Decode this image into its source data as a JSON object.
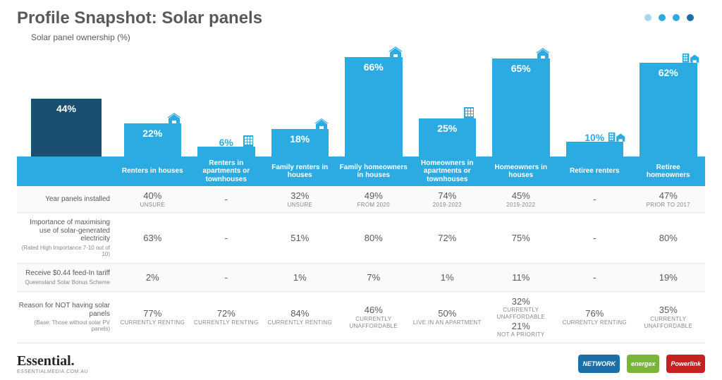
{
  "title": "Profile Snapshot: Solar panels",
  "subtitle": "Solar panel ownership (%)",
  "colors": {
    "bar_primary": "#2caae2",
    "bar_dark": "#1b4f72",
    "header_bg": "#2caae2",
    "header_text": "#ffffff",
    "text": "#595959",
    "subtext": "#888888",
    "row_alt": "#fafafa",
    "border": "#e6e6e6",
    "dot_light": "#a8d8ef",
    "dot_mid": "#2caae2",
    "dot_dark": "#1b6fa8"
  },
  "dots": [
    "#a8d8ef",
    "#2caae2",
    "#2caae2",
    "#1b6fa8"
  ],
  "chart": {
    "type": "bar",
    "max": 70,
    "first": {
      "value": 44,
      "label": "44%",
      "color": "#1b4f72",
      "height_pct": 50
    },
    "bars": [
      {
        "value": 22,
        "label": "22%",
        "color": "#2caae2",
        "icon": "house"
      },
      {
        "value": 6,
        "label": "6%",
        "color": "#2caae2",
        "icon": "apt"
      },
      {
        "value": 18,
        "label": "18%",
        "color": "#2caae2",
        "icon": "house"
      },
      {
        "value": 66,
        "label": "66%",
        "color": "#2caae2",
        "icon": "house"
      },
      {
        "value": 25,
        "label": "25%",
        "color": "#2caae2",
        "icon": "apt"
      },
      {
        "value": 65,
        "label": "65%",
        "color": "#2caae2",
        "icon": "house"
      },
      {
        "value": 10,
        "label": "10%",
        "color": "#2caae2",
        "icon": "both"
      },
      {
        "value": 62,
        "label": "62%",
        "color": "#2caae2",
        "icon": "both"
      }
    ]
  },
  "columns": [
    "Renters in houses",
    "Renters in apartments or townhouses",
    "Family renters in houses",
    "Family homeowners in houses",
    "Homeowners in apartments or townhouses",
    "Homeowners in houses",
    "Retiree renters",
    "Retiree homeowners"
  ],
  "rows": [
    {
      "label": "Year panels installed",
      "sub": "",
      "cells": [
        {
          "pct": "40%",
          "detail": "UNSURE"
        },
        {
          "pct": "-",
          "detail": ""
        },
        {
          "pct": "32%",
          "detail": "UNSURE"
        },
        {
          "pct": "49%",
          "detail": "FROM 2020"
        },
        {
          "pct": "74%",
          "detail": "2019-2022"
        },
        {
          "pct": "45%",
          "detail": "2019-2022"
        },
        {
          "pct": "-",
          "detail": ""
        },
        {
          "pct": "47%",
          "detail": "PRIOR TO 2017"
        }
      ]
    },
    {
      "label": "Importance of maximising use of solar-generated electricity",
      "sub": "(Rated High Importance 7-10 out of 10)",
      "cells": [
        {
          "pct": "63%",
          "detail": ""
        },
        {
          "pct": "-",
          "detail": ""
        },
        {
          "pct": "51%",
          "detail": ""
        },
        {
          "pct": "80%",
          "detail": ""
        },
        {
          "pct": "72%",
          "detail": ""
        },
        {
          "pct": "75%",
          "detail": ""
        },
        {
          "pct": "-",
          "detail": ""
        },
        {
          "pct": "80%",
          "detail": ""
        }
      ]
    },
    {
      "label": "Receive $0.44 feed-In tariff",
      "sub": "Queensland Solar Bonus Scheme",
      "cells": [
        {
          "pct": "2%",
          "detail": ""
        },
        {
          "pct": "-",
          "detail": ""
        },
        {
          "pct": "1%",
          "detail": ""
        },
        {
          "pct": "7%",
          "detail": ""
        },
        {
          "pct": "1%",
          "detail": ""
        },
        {
          "pct": "11%",
          "detail": ""
        },
        {
          "pct": "-",
          "detail": ""
        },
        {
          "pct": "19%",
          "detail": ""
        }
      ]
    },
    {
      "label": "Reason for NOT having solar panels",
      "sub": "(Base: Those without solar PV panels)",
      "cells": [
        {
          "pct": "77%",
          "detail": "CURRENTLY RENTING"
        },
        {
          "pct": "72%",
          "detail": "CURRENTLY RENTING"
        },
        {
          "pct": "84%",
          "detail": "CURRENTLY RENTING"
        },
        {
          "pct": "46%",
          "detail": "CURRENTLY UNAFFORDABLE"
        },
        {
          "pct": "50%",
          "detail": "LIVE IN AN APARTMENT"
        },
        {
          "pct": "32%",
          "detail": "CURRENTLY UNAFFORDABLE",
          "pct2": "21%",
          "detail2": "NOT A PRIORITY"
        },
        {
          "pct": "76%",
          "detail": "CURRENTLY RENTING"
        },
        {
          "pct": "35%",
          "detail": "CURRENTLY UNAFFORDABLE"
        }
      ]
    }
  ],
  "footer": {
    "brand": "Essential.",
    "brand_sub": "ESSENTIALMEDIA.COM.AU",
    "logos": [
      {
        "text": "NETWORK",
        "bg": "#1b6fa8"
      },
      {
        "text": "energex",
        "bg": "#7ab53a"
      },
      {
        "text": "Powerlink",
        "bg": "#c62020"
      }
    ]
  }
}
